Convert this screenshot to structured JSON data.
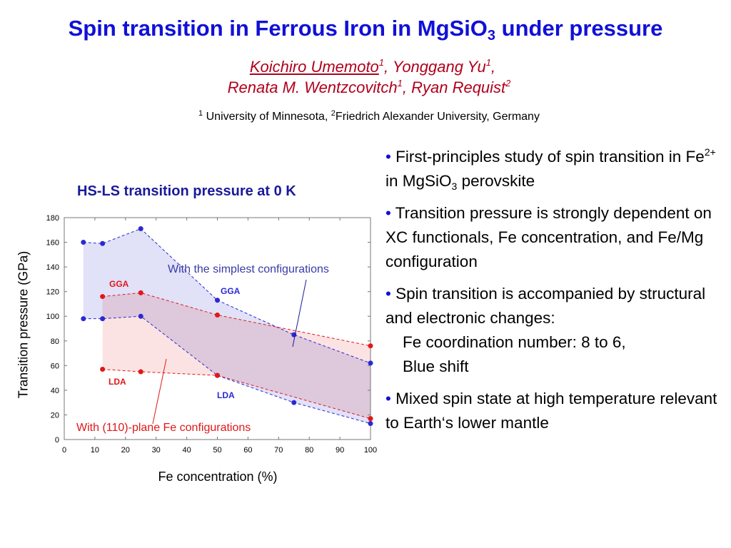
{
  "slide": {
    "title_main": "Spin transition in Ferrous Iron in MgSiO",
    "title_sub": "3",
    "title_end": " under pressure",
    "authors": [
      {
        "name": "Koichiro Umemoto",
        "sup": "1",
        "sep": ", "
      },
      {
        "name": "Yonggang Yu",
        "sup": "1",
        "sep": ","
      },
      {
        "name": "Renata M. Wentzcovitch",
        "sup": "1",
        "sep": ", "
      },
      {
        "name": "Ryan Requist",
        "sup": "2",
        "sep": ""
      }
    ],
    "affiliation": {
      "sup1": "1",
      "text1": " University of Minnesota, ",
      "sup2": "2",
      "text2": "Friedrich Alexander University, Germany"
    }
  },
  "bullets": {
    "marker": "•",
    "b1": {
      "p1": " First-principles study of spin transition in Fe",
      "sup": "2+",
      "p2": " in MgSiO",
      "sub": "3",
      "p3": " perovskite"
    },
    "b2": " Transition pressure is strongly dependent on XC functionals, Fe concentration, and Fe/Mg configuration",
    "b3": {
      "text": " Spin transition is accompanied by structural and electronic changes:",
      "sub1": "Fe coordination number: 8 to 6,",
      "sub2": "Blue shift"
    },
    "b4": " Mixed spin state at high temperature relevant to Earth‘s lower mantle"
  },
  "chart_data": {
    "type": "line",
    "title": "HS-LS transition pressure at 0 K",
    "xlabel": "Fe concentration (%)",
    "ylabel": "Transition pressure (GPa)",
    "xlim": [
      0,
      100
    ],
    "ylim": [
      0,
      180
    ],
    "xticks": [
      0,
      10,
      20,
      30,
      40,
      50,
      60,
      70,
      80,
      90,
      100
    ],
    "yticks": [
      0,
      20,
      40,
      60,
      80,
      100,
      120,
      140,
      160,
      180
    ],
    "grid": false,
    "series": [
      {
        "name": "GGA",
        "group": "simplest",
        "color": "#2a2ad0",
        "x": [
          6.25,
          12.5,
          25,
          50,
          75,
          100
        ],
        "y": [
          160,
          159,
          171,
          113,
          85,
          62
        ]
      },
      {
        "name": "LDA",
        "group": "simplest",
        "color": "#2a2ad0",
        "x": [
          6.25,
          12.5,
          25,
          50,
          75,
          100
        ],
        "y": [
          98,
          98,
          100,
          52,
          30,
          13
        ]
      },
      {
        "name": "GGA",
        "group": "110",
        "color": "#e01818",
        "x": [
          12.5,
          25,
          50,
          100
        ],
        "y": [
          116,
          119,
          101,
          76
        ]
      },
      {
        "name": "LDA",
        "group": "110",
        "color": "#e01818",
        "x": [
          12.5,
          25,
          50,
          100
        ],
        "y": [
          57,
          55,
          52,
          17
        ]
      }
    ],
    "annotations": {
      "simplest": "With the simplest configurations",
      "plane110": "With (110)-plane Fe configurations",
      "gga_blue": "GGA",
      "lda_blue": "LDA",
      "gga_red": "GGA",
      "lda_red": "LDA"
    },
    "colors": {
      "blue_fill": "#dcdcf7",
      "red_fill": "#fbd9d9",
      "overlap_fill": "#e0c6e2"
    }
  }
}
